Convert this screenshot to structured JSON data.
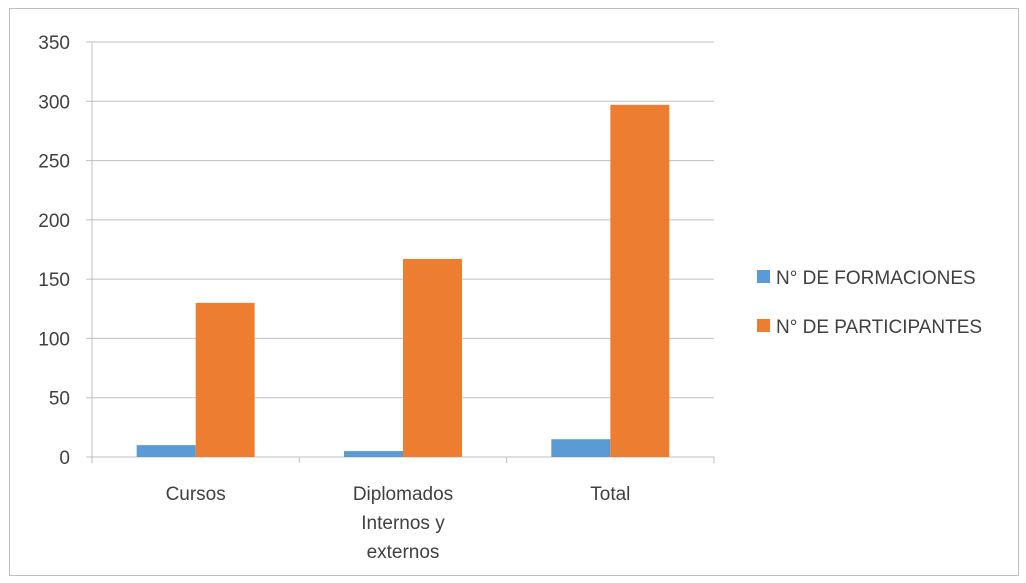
{
  "chart_data": {
    "type": "bar",
    "categories": [
      [
        "Cursos"
      ],
      [
        "Diplomados",
        "Internos y",
        "externos"
      ],
      [
        "Total"
      ]
    ],
    "series": [
      {
        "name": "N° DE FORMACIONES",
        "values": [
          10,
          5,
          15
        ],
        "color": "#5b9bd5"
      },
      {
        "name": "N° DE PARTICIPANTES",
        "values": [
          130,
          167,
          297
        ],
        "color": "#ed7d31"
      }
    ],
    "ylim": [
      0,
      350
    ],
    "yticks": [
      "0",
      "50",
      "100",
      "150",
      "200",
      "250",
      "300",
      "350"
    ],
    "grid": true,
    "legend_position": "right"
  }
}
